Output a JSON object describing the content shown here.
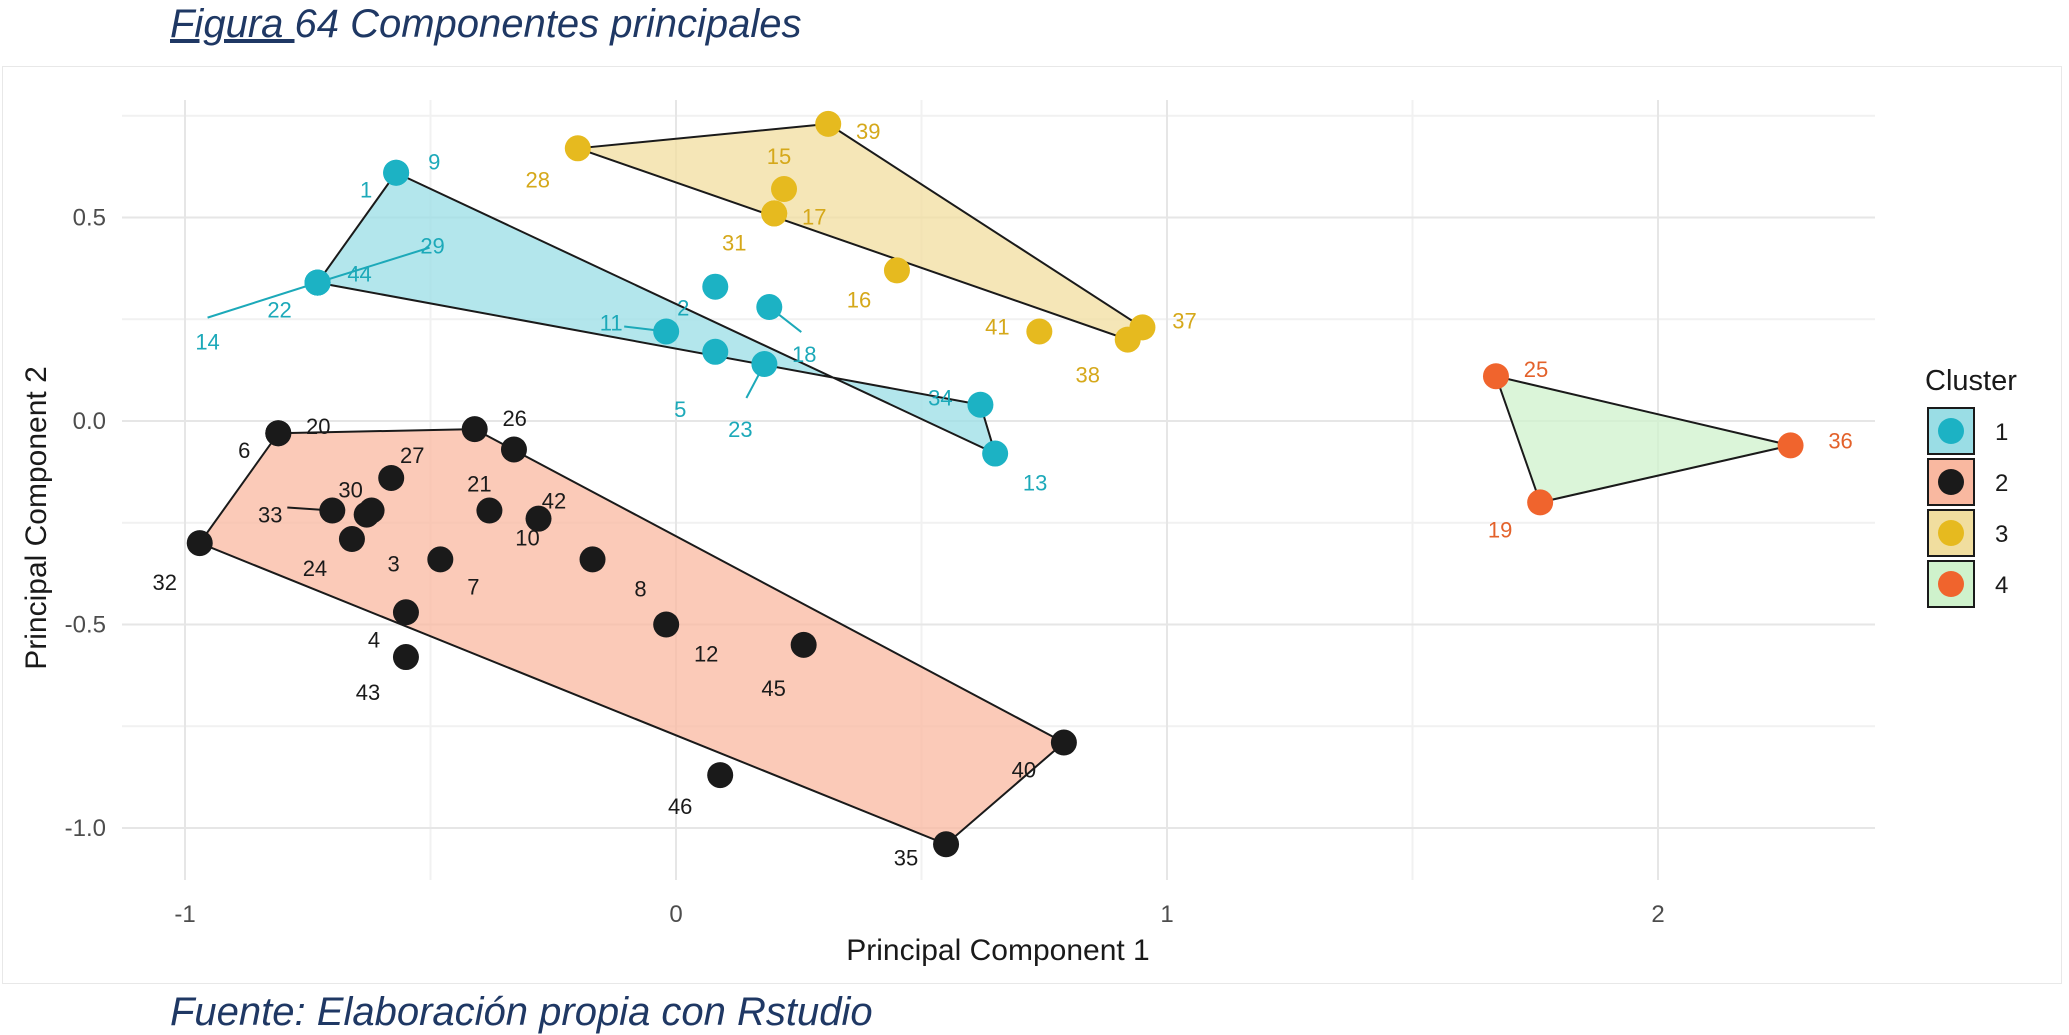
{
  "caption": {
    "figure_word": "Figura ",
    "title_rest": "64 Componentes principales",
    "source": "Fuente: Elaboración propia con Rstudio"
  },
  "chart_data": {
    "type": "scatter",
    "xlabel": "Principal Component 1",
    "ylabel": "Principal Component 2",
    "xlim": [
      -1.1,
      2.45
    ],
    "ylim": [
      -1.1,
      0.75
    ],
    "x_ticks": [
      -1,
      0,
      1,
      2
    ],
    "x_tick_labels": [
      "-1",
      "0",
      "1",
      "2"
    ],
    "y_ticks": [
      -1.0,
      -0.5,
      0.0,
      0.5
    ],
    "y_tick_labels": [
      "-1.0",
      "-0.5",
      "0.0",
      "0.5"
    ],
    "grid": true,
    "legend": {
      "title": "Cluster",
      "position": "right",
      "entries": [
        "1",
        "2",
        "3",
        "4"
      ]
    },
    "colors": {
      "1": {
        "point": "#1CB2C4",
        "fill": "#9ADDE5",
        "label": "#1CA9B9"
      },
      "2": {
        "point": "#1a1a1a",
        "fill": "#F9B8A0",
        "label": "#1a1a1a"
      },
      "3": {
        "point": "#E6BA1F",
        "fill": "#F1DE9F",
        "label": "#D5A81A"
      },
      "4": {
        "point": "#F0642D",
        "fill": "#CFF2CC",
        "label": "#E3612A"
      }
    },
    "clusters": [
      {
        "cluster": "1",
        "hull": [
          "9",
          "13",
          "34",
          "22"
        ],
        "points": [
          {
            "id": "9",
            "x": -0.57,
            "y": 0.61
          },
          {
            "id": "1",
            "x": -0.57,
            "y": 0.61
          },
          {
            "id": "22",
            "x": -0.73,
            "y": 0.34
          },
          {
            "id": "44",
            "x": -0.73,
            "y": 0.34
          },
          {
            "id": "14",
            "x": -0.73,
            "y": 0.34
          },
          {
            "id": "29",
            "x": -0.73,
            "y": 0.34
          },
          {
            "id": "2",
            "x": 0.08,
            "y": 0.33
          },
          {
            "id": "11",
            "x": -0.02,
            "y": 0.22
          },
          {
            "id": "18",
            "x": 0.19,
            "y": 0.28
          },
          {
            "id": "5",
            "x": 0.08,
            "y": 0.17
          },
          {
            "id": "23",
            "x": 0.18,
            "y": 0.14
          },
          {
            "id": "34",
            "x": 0.62,
            "y": 0.04
          },
          {
            "id": "13",
            "x": 0.65,
            "y": -0.08
          }
        ]
      },
      {
        "cluster": "2",
        "hull": [
          "20",
          "26",
          "40",
          "35",
          "32"
        ],
        "points": [
          {
            "id": "20",
            "x": -0.81,
            "y": -0.03
          },
          {
            "id": "6",
            "x": -0.81,
            "y": -0.03
          },
          {
            "id": "26",
            "x": -0.41,
            "y": -0.02
          },
          {
            "id": "42",
            "x": -0.33,
            "y": -0.07
          },
          {
            "id": "27",
            "x": -0.58,
            "y": -0.14
          },
          {
            "id": "30",
            "x": -0.62,
            "y": -0.22
          },
          {
            "id": "33",
            "x": -0.7,
            "y": -0.22
          },
          {
            "id": "3",
            "x": -0.63,
            "y": -0.23
          },
          {
            "id": "21",
            "x": -0.38,
            "y": -0.22
          },
          {
            "id": "24",
            "x": -0.66,
            "y": -0.29
          },
          {
            "id": "7",
            "x": -0.48,
            "y": -0.34
          },
          {
            "id": "10",
            "x": -0.28,
            "y": -0.24
          },
          {
            "id": "8",
            "x": -0.17,
            "y": -0.34
          },
          {
            "id": "32",
            "x": -0.97,
            "y": -0.3
          },
          {
            "id": "4",
            "x": -0.55,
            "y": -0.47
          },
          {
            "id": "43",
            "x": -0.55,
            "y": -0.58
          },
          {
            "id": "12",
            "x": -0.02,
            "y": -0.5
          },
          {
            "id": "45",
            "x": 0.26,
            "y": -0.55
          },
          {
            "id": "46",
            "x": 0.09,
            "y": -0.87
          },
          {
            "id": "40",
            "x": 0.79,
            "y": -0.79
          },
          {
            "id": "35",
            "x": 0.55,
            "y": -1.04
          }
        ]
      },
      {
        "cluster": "3",
        "hull": [
          "28",
          "39",
          "37",
          "38"
        ],
        "points": [
          {
            "id": "28",
            "x": -0.2,
            "y": 0.67
          },
          {
            "id": "39",
            "x": 0.31,
            "y": 0.73
          },
          {
            "id": "15",
            "x": 0.22,
            "y": 0.57
          },
          {
            "id": "17",
            "x": 0.2,
            "y": 0.51
          },
          {
            "id": "31",
            "x": 0.2,
            "y": 0.51
          },
          {
            "id": "16",
            "x": 0.45,
            "y": 0.37
          },
          {
            "id": "41",
            "x": 0.74,
            "y": 0.22
          },
          {
            "id": "37",
            "x": 0.95,
            "y": 0.23
          },
          {
            "id": "38",
            "x": 0.92,
            "y": 0.2
          }
        ]
      },
      {
        "cluster": "4",
        "hull": [
          "25",
          "36",
          "19"
        ],
        "points": [
          {
            "id": "25",
            "x": 1.67,
            "y": 0.11
          },
          {
            "id": "36",
            "x": 2.27,
            "y": -0.06
          },
          {
            "id": "19",
            "x": 1.76,
            "y": -0.2
          }
        ]
      }
    ]
  }
}
